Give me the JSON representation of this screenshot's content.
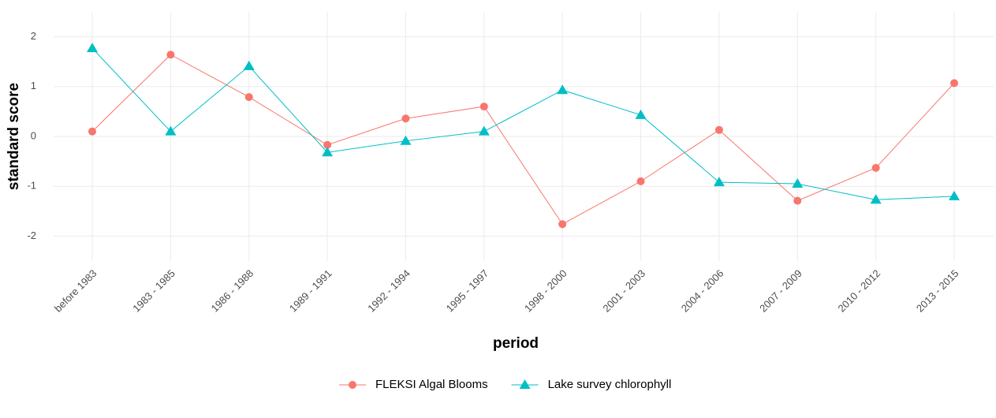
{
  "chart_data": {
    "type": "line",
    "x_label": "period",
    "y_label": "standard score",
    "categories": [
      "before 1983",
      "1983 - 1985",
      "1986 - 1988",
      "1989 - 1991",
      "1992 - 1994",
      "1995 - 1997",
      "1998 - 2000",
      "2001 - 2003",
      "2004 - 2006",
      "2007 - 2009",
      "2010 - 2012",
      "2013 - 2015"
    ],
    "series": [
      {
        "name": "FLEKSI Algal Blooms",
        "color": "#F8766D",
        "marker": "circle",
        "values": [
          0.1,
          1.64,
          0.79,
          -0.17,
          0.36,
          0.6,
          -1.76,
          -0.9,
          0.13,
          -1.29,
          -0.63,
          1.07
        ]
      },
      {
        "name": "Lake survey chlorophyll",
        "color": "#00BFC4",
        "marker": "triangle",
        "values": [
          1.77,
          0.1,
          1.41,
          -0.32,
          -0.09,
          0.1,
          0.93,
          0.43,
          -0.92,
          -0.95,
          -1.27,
          -1.2
        ]
      }
    ],
    "ylim": [
      -2.5,
      2.5
    ],
    "yticks": [
      -2,
      -1,
      0,
      1,
      2
    ],
    "grid": true,
    "legend": "bottom"
  }
}
